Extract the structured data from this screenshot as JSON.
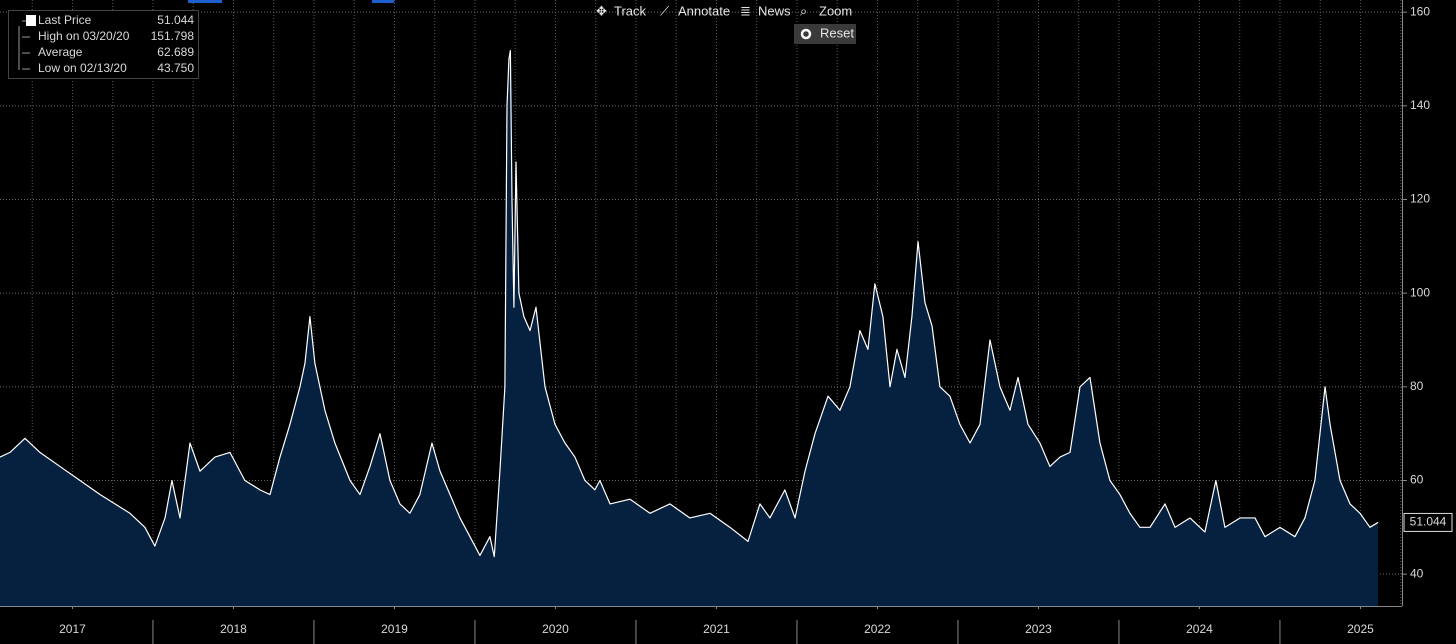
{
  "toolbar": [
    "Track",
    "Annotate",
    "News",
    "Zoom",
    "Reset"
  ],
  "legend": [
    {
      "label": "Last Price",
      "value": "51.044"
    },
    {
      "label": "High on 03/20/20",
      "value": "151.798"
    },
    {
      "label": "Average",
      "value": "62.689"
    },
    {
      "label": "Low on 02/13/20",
      "value": "43.750"
    }
  ],
  "chart_data": {
    "type": "area",
    "color": "#ffffff",
    "fill": "#06203f",
    "x": [
      2017.05,
      2017.112,
      2017.205,
      2017.298,
      2017.422,
      2017.547,
      2017.671,
      2017.764,
      2017.857,
      2017.95,
      2018.012,
      2018.075,
      2018.118,
      2018.168,
      2018.23,
      2018.292,
      2018.385,
      2018.478,
      2018.571,
      2018.665,
      2018.727,
      2018.789,
      2018.851,
      2018.913,
      2018.944,
      2018.975,
      2019.006,
      2019.068,
      2019.13,
      2019.224,
      2019.286,
      2019.348,
      2019.41,
      2019.472,
      2019.534,
      2019.596,
      2019.658,
      2019.733,
      2019.783,
      2019.845,
      2019.907,
      2019.969,
      2020.031,
      2020.093,
      2020.12,
      2020.155,
      2020.186,
      2020.199,
      2020.211,
      2020.22,
      2020.23,
      2020.242,
      2020.255,
      2020.273,
      2020.304,
      2020.342,
      2020.379,
      2020.435,
      2020.497,
      2020.559,
      2020.621,
      2020.683,
      2020.745,
      2020.776,
      2020.839,
      2020.963,
      2021.087,
      2021.211,
      2021.335,
      2021.46,
      2021.584,
      2021.696,
      2021.77,
      2021.832,
      2021.925,
      2021.988,
      2022.05,
      2022.112,
      2022.193,
      2022.267,
      2022.329,
      2022.391,
      2022.441,
      2022.484,
      2022.534,
      2022.578,
      2022.621,
      2022.671,
      2022.714,
      2022.752,
      2022.795,
      2022.839,
      2022.888,
      2022.95,
      2023.012,
      2023.075,
      2023.137,
      2023.199,
      2023.261,
      2023.323,
      2023.373,
      2023.435,
      2023.509,
      2023.571,
      2023.634,
      2023.696,
      2023.758,
      2023.82,
      2023.882,
      2023.944,
      2024.006,
      2024.068,
      2024.13,
      2024.193,
      2024.286,
      2024.348,
      2024.441,
      2024.534,
      2024.602,
      2024.658,
      2024.752,
      2024.845,
      2024.907,
      2025.0,
      2025.093,
      2025.155,
      2025.217,
      2025.28,
      2025.311,
      2025.373,
      2025.435,
      2025.497,
      2025.559,
      2025.609
    ],
    "values": [
      65,
      66,
      69,
      66,
      63,
      60,
      57,
      55,
      53,
      50,
      46,
      52,
      60,
      52,
      68,
      62,
      65,
      66,
      60,
      58,
      57,
      65,
      72,
      80,
      85,
      95,
      85,
      75,
      68,
      60,
      57,
      63,
      70,
      60,
      55,
      53,
      57,
      68,
      62,
      57,
      52,
      48,
      44,
      48,
      43.75,
      62,
      80,
      140,
      150,
      151.798,
      120,
      97,
      128,
      100,
      95,
      92,
      97,
      80,
      72,
      68,
      65,
      60,
      58,
      60,
      55,
      56,
      53,
      55,
      52,
      53,
      50,
      47,
      55,
      52,
      58,
      52,
      62,
      70,
      78,
      75,
      80,
      92,
      88,
      102,
      95,
      80,
      88,
      82,
      95,
      111,
      98,
      93,
      80,
      78,
      72,
      68,
      72,
      90,
      80,
      75,
      82,
      72,
      68,
      63,
      65,
      66,
      80,
      82,
      68,
      60,
      57,
      53,
      50,
      50,
      55,
      50,
      52,
      49,
      60,
      50,
      52,
      52,
      48,
      50,
      48,
      52,
      60,
      80,
      72,
      60,
      55,
      53,
      50,
      51.044
    ],
    "last_label": "51.044",
    "xlim": [
      2017.05,
      2025.758
    ],
    "ylim": [
      33.2,
      162.6
    ],
    "yticks": [
      40,
      60,
      80,
      100,
      120,
      140,
      160
    ],
    "xticks": [
      {
        "value": 2017.5,
        "label": "2017"
      },
      {
        "value": 2018.5,
        "label": "2018"
      },
      {
        "value": 2019.5,
        "label": "2019"
      },
      {
        "value": 2020.5,
        "label": "2020"
      },
      {
        "value": 2021.5,
        "label": "2021"
      },
      {
        "value": 2022.5,
        "label": "2022"
      },
      {
        "value": 2023.5,
        "label": "2023"
      },
      {
        "value": 2024.5,
        "label": "2024"
      },
      {
        "value": 2025.5,
        "label": "2025"
      }
    ],
    "grid": true
  }
}
